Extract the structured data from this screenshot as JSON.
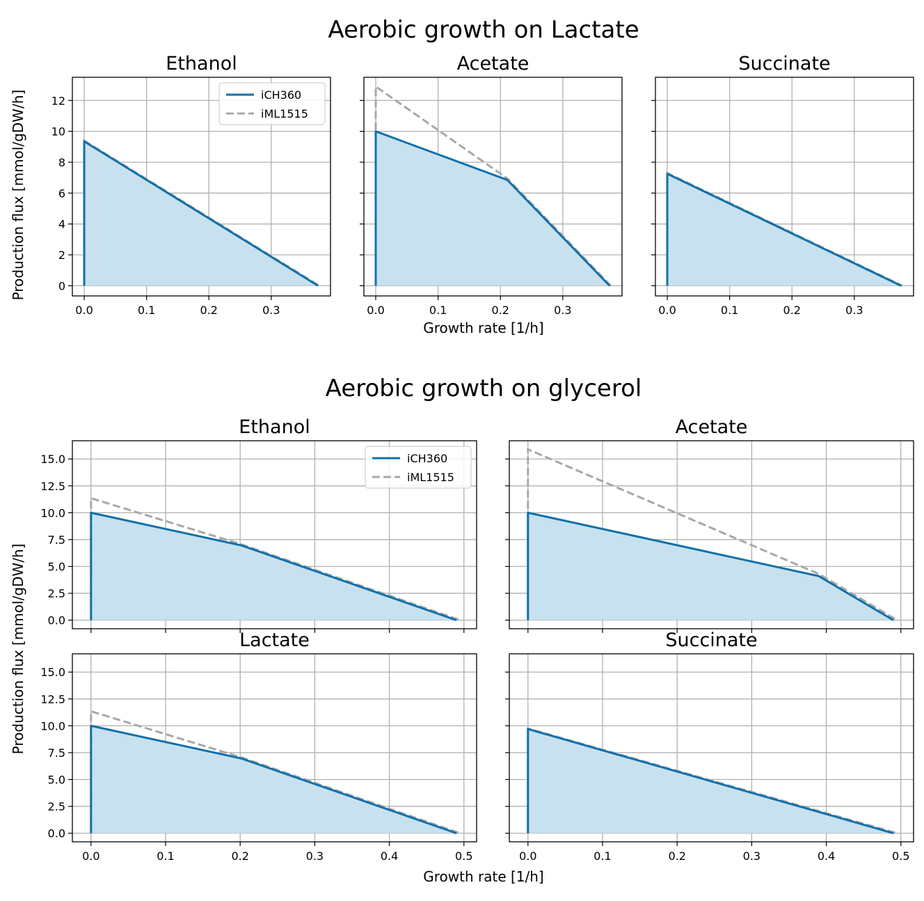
{
  "figure": {
    "colors": {
      "ich360_line": "#1170aa",
      "ich360_fill": "#c8e1ef",
      "iml1515_line": "#a8a8a8",
      "grid": "#b0b0b0",
      "axes": "#000000"
    }
  },
  "chart_data": [
    {
      "group": "Aerobic growth on Lactate",
      "type": "area",
      "xlabel": "Growth rate [1/h]",
      "ylabel": "Production flux [mmol/gDW/h]",
      "legend": [
        "iCH360",
        "iML1515"
      ],
      "legend_position": "top-right of first panel",
      "panels": [
        {
          "title": "Ethanol",
          "xlim": [
            -0.019,
            0.395
          ],
          "ylim": [
            -0.66,
            13.5
          ],
          "xticks": [
            0.0,
            0.1,
            0.2,
            0.3
          ],
          "xtick_labels": [
            "0.0",
            "0.1",
            "0.2",
            "0.3"
          ],
          "yticks": [
            0,
            2,
            4,
            6,
            8,
            10,
            12
          ],
          "ytick_labels": [
            "0",
            "2",
            "4",
            "6",
            "8",
            "10",
            "12"
          ],
          "show_xticklabels": true,
          "show_yticklabels": true,
          "show_legend": true,
          "series": [
            {
              "name": "iCH360",
              "x": [
                0.0,
                0.0,
                0.375
              ],
              "y": [
                0.0,
                9.35,
                0.0
              ]
            },
            {
              "name": "iML1515",
              "x": [
                0.0,
                0.0,
                0.377
              ],
              "y": [
                0.0,
                9.4,
                0.0
              ]
            }
          ]
        },
        {
          "title": "Acetate",
          "xlim": [
            -0.019,
            0.395
          ],
          "ylim": [
            -0.66,
            13.5
          ],
          "xticks": [
            0.0,
            0.1,
            0.2,
            0.3
          ],
          "xtick_labels": [
            "0.0",
            "0.1",
            "0.2",
            "0.3"
          ],
          "yticks": [
            0,
            2,
            4,
            6,
            8,
            10,
            12
          ],
          "ytick_labels": [
            "0",
            "2",
            "4",
            "6",
            "8",
            "10",
            "12"
          ],
          "show_xticklabels": true,
          "show_yticklabels": false,
          "show_legend": false,
          "series": [
            {
              "name": "iCH360",
              "x": [
                0.0,
                0.0,
                0.211,
                0.375
              ],
              "y": [
                0.0,
                10.0,
                6.85,
                0.0
              ]
            },
            {
              "name": "iML1515",
              "x": [
                0.0,
                0.0,
                0.211,
                0.377
              ],
              "y": [
                0.0,
                12.9,
                6.95,
                0.0
              ]
            }
          ]
        },
        {
          "title": "Succinate",
          "xlim": [
            -0.019,
            0.395
          ],
          "ylim": [
            -0.66,
            13.5
          ],
          "xticks": [
            0.0,
            0.1,
            0.2,
            0.3
          ],
          "xtick_labels": [
            "0.0",
            "0.1",
            "0.2",
            "0.3"
          ],
          "yticks": [
            0,
            2,
            4,
            6,
            8,
            10,
            12
          ],
          "ytick_labels": [
            "0",
            "2",
            "4",
            "6",
            "8",
            "10",
            "12"
          ],
          "show_xticklabels": true,
          "show_yticklabels": false,
          "show_legend": false,
          "series": [
            {
              "name": "iCH360",
              "x": [
                0.0,
                0.0,
                0.375
              ],
              "y": [
                0.0,
                7.25,
                0.0
              ]
            },
            {
              "name": "iML1515",
              "x": [
                0.0,
                0.0,
                0.377
              ],
              "y": [
                0.0,
                7.3,
                0.0
              ]
            }
          ]
        }
      ]
    },
    {
      "group": "Aerobic growth on glycerol",
      "type": "area",
      "xlabel": "Growth rate [1/h]",
      "ylabel": "Production flux [mmol/gDW/h]",
      "legend": [
        "iCH360",
        "iML1515"
      ],
      "legend_position": "top-right of first panel",
      "panels": [
        {
          "title": "Ethanol",
          "xlim": [
            -0.025,
            0.517
          ],
          "ylim": [
            -0.8,
            16.7
          ],
          "xticks": [
            0.0,
            0.1,
            0.2,
            0.3,
            0.4,
            0.5
          ],
          "xtick_labels": [
            "0.0",
            "0.1",
            "0.2",
            "0.3",
            "0.4",
            "0.5"
          ],
          "yticks": [
            0.0,
            2.5,
            5.0,
            7.5,
            10.0,
            12.5,
            15.0
          ],
          "ytick_labels": [
            "0.0",
            "2.5",
            "5.0",
            "7.5",
            "10.0",
            "12.5",
            "15.0"
          ],
          "show_xticklabels": false,
          "show_yticklabels": true,
          "show_legend": true,
          "series": [
            {
              "name": "iCH360",
              "x": [
                0.0,
                0.0,
                0.202,
                0.49
              ],
              "y": [
                0.0,
                10.0,
                6.95,
                0.0
              ]
            },
            {
              "name": "iML1515",
              "x": [
                0.0,
                0.0,
                0.202,
                0.495
              ],
              "y": [
                0.0,
                11.35,
                7.05,
                0.0
              ]
            }
          ]
        },
        {
          "title": "Acetate",
          "xlim": [
            -0.025,
            0.517
          ],
          "ylim": [
            -0.8,
            16.7
          ],
          "xticks": [
            0.0,
            0.1,
            0.2,
            0.3,
            0.4,
            0.5
          ],
          "xtick_labels": [
            "0.0",
            "0.1",
            "0.2",
            "0.3",
            "0.4",
            "0.5"
          ],
          "yticks": [
            0.0,
            2.5,
            5.0,
            7.5,
            10.0,
            12.5,
            15.0
          ],
          "ytick_labels": [
            "0.0",
            "2.5",
            "5.0",
            "7.5",
            "10.0",
            "12.5",
            "15.0"
          ],
          "show_xticklabels": false,
          "show_yticklabels": false,
          "show_legend": false,
          "series": [
            {
              "name": "iCH360",
              "x": [
                0.0,
                0.0,
                0.39,
                0.49
              ],
              "y": [
                0.0,
                10.0,
                4.1,
                0.0
              ]
            },
            {
              "name": "iML1515",
              "x": [
                0.0,
                0.0,
                0.39,
                0.495
              ],
              "y": [
                0.0,
                15.9,
                4.3,
                0.0
              ]
            }
          ]
        },
        {
          "title": "Lactate",
          "xlim": [
            -0.025,
            0.517
          ],
          "ylim": [
            -0.8,
            16.7
          ],
          "xticks": [
            0.0,
            0.1,
            0.2,
            0.3,
            0.4,
            0.5
          ],
          "xtick_labels": [
            "0.0",
            "0.1",
            "0.2",
            "0.3",
            "0.4",
            "0.5"
          ],
          "yticks": [
            0.0,
            2.5,
            5.0,
            7.5,
            10.0,
            12.5,
            15.0
          ],
          "ytick_labels": [
            "0.0",
            "2.5",
            "5.0",
            "7.5",
            "10.0",
            "12.5",
            "15.0"
          ],
          "show_xticklabels": true,
          "show_yticklabels": true,
          "show_legend": false,
          "series": [
            {
              "name": "iCH360",
              "x": [
                0.0,
                0.0,
                0.202,
                0.49
              ],
              "y": [
                0.0,
                10.0,
                6.95,
                0.0
              ]
            },
            {
              "name": "iML1515",
              "x": [
                0.0,
                0.0,
                0.202,
                0.495
              ],
              "y": [
                0.0,
                11.35,
                7.05,
                0.0
              ]
            }
          ]
        },
        {
          "title": "Succinate",
          "xlim": [
            -0.025,
            0.517
          ],
          "ylim": [
            -0.8,
            16.7
          ],
          "xticks": [
            0.0,
            0.1,
            0.2,
            0.3,
            0.4,
            0.5
          ],
          "xtick_labels": [
            "0.0",
            "0.1",
            "0.2",
            "0.3",
            "0.4",
            "0.5"
          ],
          "yticks": [
            0.0,
            2.5,
            5.0,
            7.5,
            10.0,
            12.5,
            15.0
          ],
          "ytick_labels": [
            "0.0",
            "2.5",
            "5.0",
            "7.5",
            "10.0",
            "12.5",
            "15.0"
          ],
          "show_xticklabels": true,
          "show_yticklabels": false,
          "show_legend": false,
          "series": [
            {
              "name": "iCH360",
              "x": [
                0.0,
                0.0,
                0.49
              ],
              "y": [
                0.0,
                9.7,
                0.0
              ]
            },
            {
              "name": "iML1515",
              "x": [
                0.0,
                0.0,
                0.495
              ],
              "y": [
                0.0,
                9.75,
                0.0
              ]
            }
          ]
        }
      ]
    }
  ]
}
